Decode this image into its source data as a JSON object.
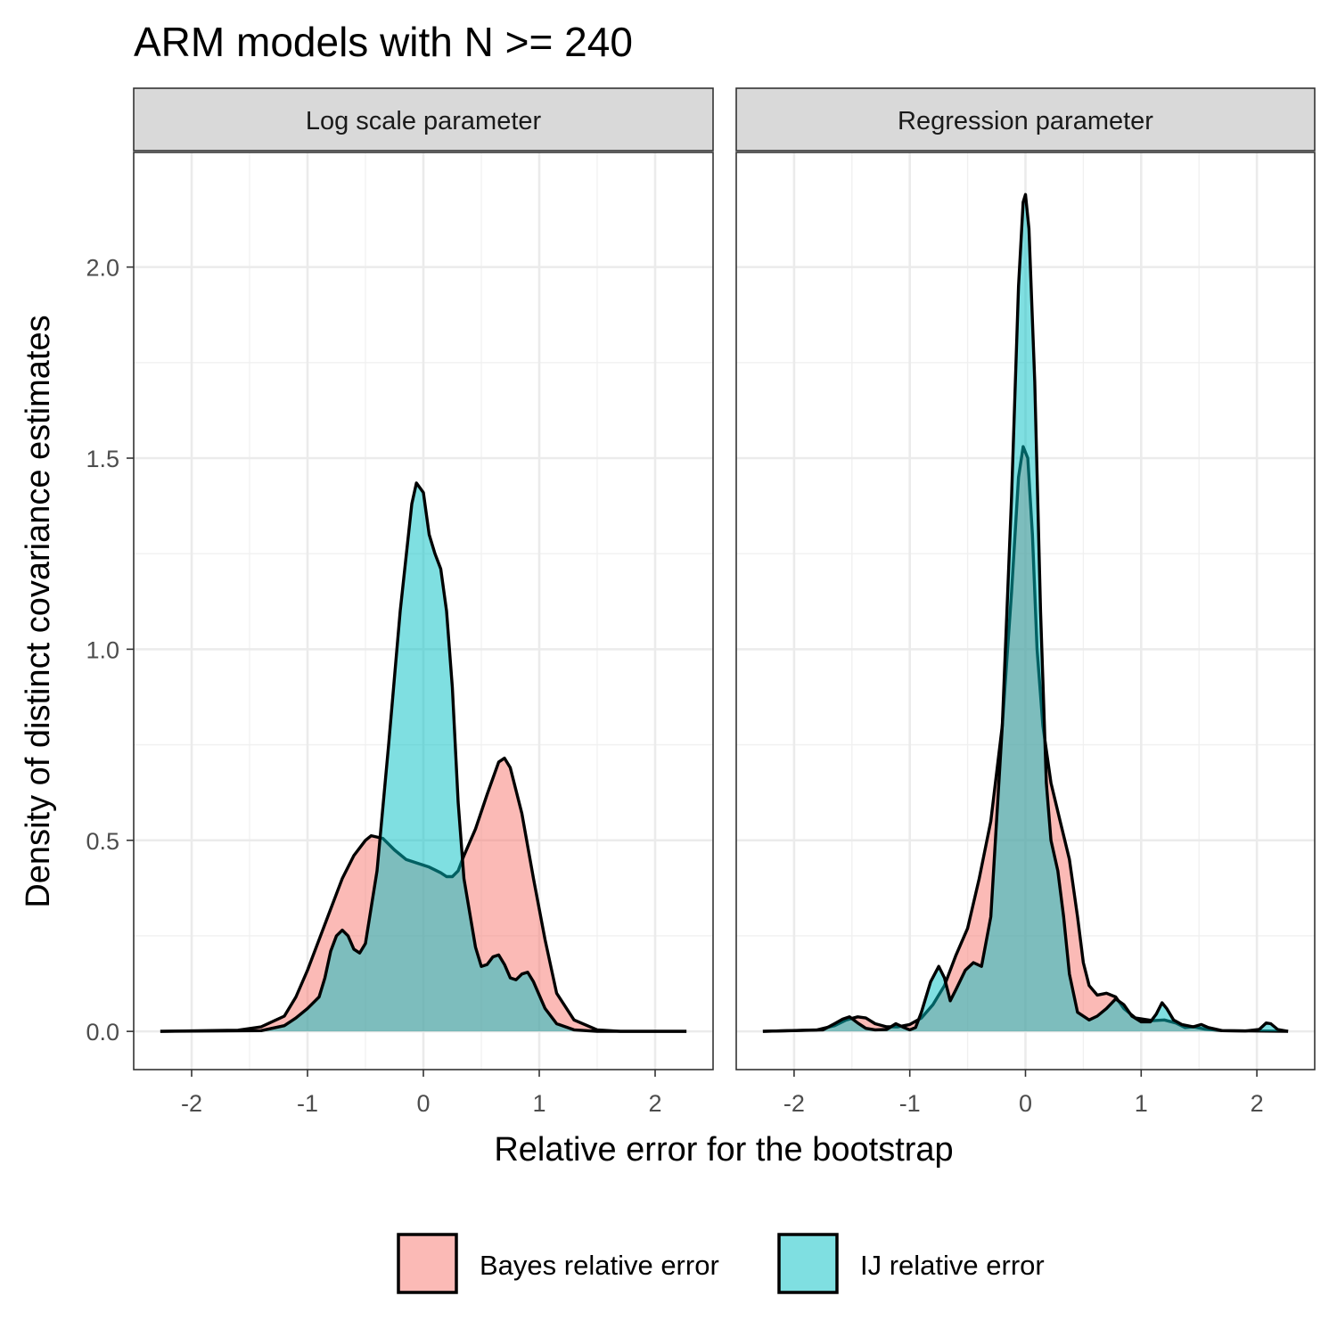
{
  "chart_data": {
    "type": "area",
    "title": "ARM models with N >= 240",
    "xlabel": "Relative error for the bootstrap",
    "ylabel": "Density of distinct covariance estimates",
    "xlim": [
      -2.5,
      2.5
    ],
    "ylim": [
      -0.1,
      2.3
    ],
    "x_ticks": [
      -2,
      -1,
      0,
      1,
      2
    ],
    "x_tick_labels": [
      "-2",
      "-1",
      "0",
      "1",
      "2"
    ],
    "y_ticks": [
      0.0,
      0.5,
      1.0,
      1.5,
      2.0
    ],
    "y_tick_labels": [
      "0.0",
      "0.5",
      "1.0",
      "1.5",
      "2.0"
    ],
    "grid": true,
    "legend_position": "bottom",
    "series_styles": [
      {
        "name": "Bayes relative error",
        "color": "#F8766D",
        "opacity": 0.5
      },
      {
        "name": "IJ relative error",
        "color": "#00BFC4",
        "opacity": 0.5
      }
    ],
    "panels": [
      {
        "strip": "Log scale parameter",
        "series": [
          {
            "name": "Bayes relative error",
            "points": [
              [
                -2.27,
                0
              ],
              [
                -1.6,
                0.003
              ],
              [
                -1.4,
                0.012
              ],
              [
                -1.2,
                0.04
              ],
              [
                -1.1,
                0.09
              ],
              [
                -1.0,
                0.16
              ],
              [
                -0.9,
                0.24
              ],
              [
                -0.8,
                0.32
              ],
              [
                -0.7,
                0.4
              ],
              [
                -0.6,
                0.46
              ],
              [
                -0.5,
                0.5
              ],
              [
                -0.45,
                0.512
              ],
              [
                -0.35,
                0.505
              ],
              [
                -0.25,
                0.475
              ],
              [
                -0.15,
                0.45
              ],
              [
                -0.05,
                0.44
              ],
              [
                0.05,
                0.43
              ],
              [
                0.15,
                0.415
              ],
              [
                0.2,
                0.405
              ],
              [
                0.25,
                0.405
              ],
              [
                0.3,
                0.42
              ],
              [
                0.35,
                0.46
              ],
              [
                0.45,
                0.53
              ],
              [
                0.55,
                0.62
              ],
              [
                0.65,
                0.705
              ],
              [
                0.7,
                0.715
              ],
              [
                0.75,
                0.69
              ],
              [
                0.85,
                0.57
              ],
              [
                0.95,
                0.4
              ],
              [
                1.05,
                0.24
              ],
              [
                1.15,
                0.1
              ],
              [
                1.3,
                0.03
              ],
              [
                1.5,
                0.004
              ],
              [
                1.7,
                0
              ],
              [
                2.27,
                0
              ]
            ]
          },
          {
            "name": "IJ relative error",
            "points": [
              [
                -2.27,
                0
              ],
              [
                -1.4,
                0.002
              ],
              [
                -1.2,
                0.015
              ],
              [
                -1.1,
                0.035
              ],
              [
                -1.0,
                0.06
              ],
              [
                -0.9,
                0.09
              ],
              [
                -0.85,
                0.14
              ],
              [
                -0.8,
                0.21
              ],
              [
                -0.75,
                0.25
              ],
              [
                -0.7,
                0.265
              ],
              [
                -0.65,
                0.25
              ],
              [
                -0.6,
                0.215
              ],
              [
                -0.55,
                0.205
              ],
              [
                -0.5,
                0.23
              ],
              [
                -0.4,
                0.42
              ],
              [
                -0.3,
                0.75
              ],
              [
                -0.2,
                1.1
              ],
              [
                -0.1,
                1.38
              ],
              [
                -0.06,
                1.435
              ],
              [
                0,
                1.41
              ],
              [
                0.05,
                1.3
              ],
              [
                0.1,
                1.25
              ],
              [
                0.15,
                1.21
              ],
              [
                0.2,
                1.1
              ],
              [
                0.25,
                0.9
              ],
              [
                0.3,
                0.6
              ],
              [
                0.35,
                0.4
              ],
              [
                0.45,
                0.22
              ],
              [
                0.5,
                0.17
              ],
              [
                0.55,
                0.175
              ],
              [
                0.6,
                0.195
              ],
              [
                0.65,
                0.2
              ],
              [
                0.7,
                0.175
              ],
              [
                0.75,
                0.14
              ],
              [
                0.8,
                0.135
              ],
              [
                0.85,
                0.15
              ],
              [
                0.9,
                0.155
              ],
              [
                0.95,
                0.13
              ],
              [
                1.05,
                0.06
              ],
              [
                1.15,
                0.02
              ],
              [
                1.3,
                0.004
              ],
              [
                1.5,
                0
              ],
              [
                2.27,
                0
              ]
            ]
          }
        ]
      },
      {
        "strip": "Regression parameter",
        "series": [
          {
            "name": "Bayes relative error",
            "points": [
              [
                -2.27,
                0
              ],
              [
                -1.8,
                0.004
              ],
              [
                -1.65,
                0.015
              ],
              [
                -1.55,
                0.03
              ],
              [
                -1.45,
                0.038
              ],
              [
                -1.38,
                0.035
              ],
              [
                -1.3,
                0.02
              ],
              [
                -1.2,
                0.012
              ],
              [
                -1.1,
                0.012
              ],
              [
                -1.0,
                0.018
              ],
              [
                -0.9,
                0.035
              ],
              [
                -0.8,
                0.07
              ],
              [
                -0.7,
                0.12
              ],
              [
                -0.6,
                0.2
              ],
              [
                -0.5,
                0.27
              ],
              [
                -0.4,
                0.4
              ],
              [
                -0.3,
                0.55
              ],
              [
                -0.2,
                0.8
              ],
              [
                -0.12,
                1.15
              ],
              [
                -0.06,
                1.45
              ],
              [
                -0.02,
                1.53
              ],
              [
                0.02,
                1.5
              ],
              [
                0.06,
                1.3
              ],
              [
                0.1,
                1.0
              ],
              [
                0.15,
                0.8
              ],
              [
                0.22,
                0.65
              ],
              [
                0.3,
                0.55
              ],
              [
                0.38,
                0.45
              ],
              [
                0.45,
                0.3
              ],
              [
                0.5,
                0.18
              ],
              [
                0.55,
                0.12
              ],
              [
                0.62,
                0.095
              ],
              [
                0.7,
                0.1
              ],
              [
                0.78,
                0.09
              ],
              [
                0.85,
                0.06
              ],
              [
                0.95,
                0.035
              ],
              [
                1.1,
                0.028
              ],
              [
                1.2,
                0.03
              ],
              [
                1.3,
                0.022
              ],
              [
                1.38,
                0.01
              ],
              [
                1.45,
                0.012
              ],
              [
                1.55,
                0.006
              ],
              [
                1.7,
                0.002
              ],
              [
                2.27,
                0
              ]
            ]
          },
          {
            "name": "IJ relative error",
            "points": [
              [
                -2.27,
                0
              ],
              [
                -1.75,
                0.004
              ],
              [
                -1.65,
                0.02
              ],
              [
                -1.58,
                0.032
              ],
              [
                -1.52,
                0.038
              ],
              [
                -1.45,
                0.022
              ],
              [
                -1.38,
                0.008
              ],
              [
                -1.3,
                0.004
              ],
              [
                -1.2,
                0.005
              ],
              [
                -1.12,
                0.02
              ],
              [
                -1.05,
                0.01
              ],
              [
                -1.0,
                0.004
              ],
              [
                -0.95,
                0.01
              ],
              [
                -0.9,
                0.05
              ],
              [
                -0.82,
                0.13
              ],
              [
                -0.75,
                0.17
              ],
              [
                -0.7,
                0.14
              ],
              [
                -0.65,
                0.08
              ],
              [
                -0.6,
                0.11
              ],
              [
                -0.52,
                0.16
              ],
              [
                -0.45,
                0.18
              ],
              [
                -0.38,
                0.17
              ],
              [
                -0.3,
                0.3
              ],
              [
                -0.2,
                0.8
              ],
              [
                -0.12,
                1.4
              ],
              [
                -0.06,
                1.95
              ],
              [
                -0.02,
                2.17
              ],
              [
                0.0,
                2.19
              ],
              [
                0.03,
                2.1
              ],
              [
                0.08,
                1.7
              ],
              [
                0.13,
                1.1
              ],
              [
                0.18,
                0.65
              ],
              [
                0.22,
                0.5
              ],
              [
                0.28,
                0.42
              ],
              [
                0.33,
                0.3
              ],
              [
                0.38,
                0.15
              ],
              [
                0.45,
                0.05
              ],
              [
                0.55,
                0.03
              ],
              [
                0.62,
                0.04
              ],
              [
                0.7,
                0.06
              ],
              [
                0.78,
                0.085
              ],
              [
                0.85,
                0.07
              ],
              [
                0.92,
                0.04
              ],
              [
                1.0,
                0.025
              ],
              [
                1.08,
                0.025
              ],
              [
                1.13,
                0.045
              ],
              [
                1.18,
                0.075
              ],
              [
                1.22,
                0.06
              ],
              [
                1.28,
                0.03
              ],
              [
                1.35,
                0.018
              ],
              [
                1.45,
                0.012
              ],
              [
                1.52,
                0.018
              ],
              [
                1.58,
                0.01
              ],
              [
                1.7,
                0.002
              ],
              [
                1.9,
                0.001
              ],
              [
                2.02,
                0.005
              ],
              [
                2.08,
                0.022
              ],
              [
                2.12,
                0.02
              ],
              [
                2.18,
                0.005
              ],
              [
                2.27,
                0
              ]
            ]
          }
        ]
      }
    ]
  }
}
